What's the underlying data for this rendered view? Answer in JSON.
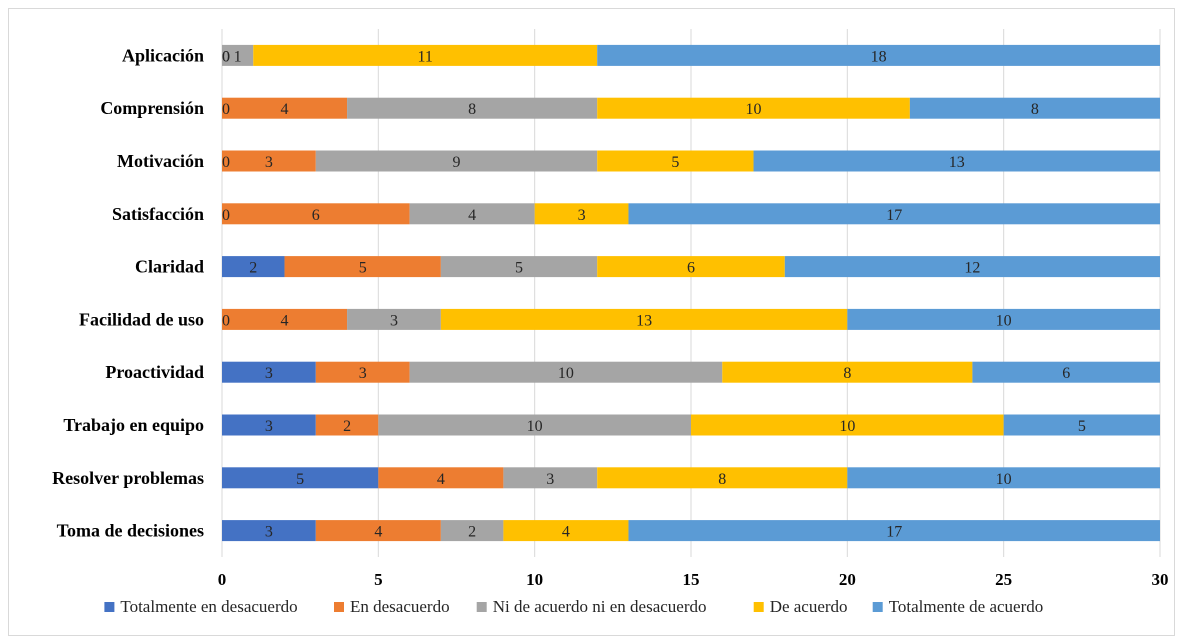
{
  "chart_data": {
    "type": "bar",
    "orientation": "horizontal",
    "stacked": true,
    "title": "",
    "xlabel": "",
    "ylabel": "",
    "xlim": [
      0,
      30
    ],
    "x_ticks": [
      "0",
      "5",
      "10",
      "15",
      "20",
      "25",
      "30"
    ],
    "grid": true,
    "legend_position": "bottom",
    "categories": [
      "Aplicación",
      "Comprensión",
      "Motivación",
      "Satisfacción",
      "Claridad",
      "Facilidad de uso",
      "Proactividad",
      "Trabajo en equipo",
      "Resolver problemas",
      "Toma de decisiones"
    ],
    "series": [
      {
        "name": "Totalmente en desacuerdo",
        "color": "#4472c4",
        "values": [
          0,
          0,
          0,
          0,
          2,
          0,
          3,
          3,
          5,
          3
        ]
      },
      {
        "name": "En desacuerdo",
        "color": "#ed7d31",
        "values": [
          0,
          4,
          3,
          6,
          5,
          4,
          3,
          2,
          4,
          4
        ]
      },
      {
        "name": "Ni de acuerdo ni en desacuerdo",
        "color": "#a5a5a5",
        "values": [
          1,
          8,
          9,
          4,
          5,
          3,
          10,
          10,
          3,
          2
        ]
      },
      {
        "name": "De acuerdo",
        "color": "#ffc000",
        "values": [
          11,
          10,
          5,
          3,
          6,
          13,
          8,
          10,
          8,
          4
        ]
      },
      {
        "name": "Totalmente de acuerdo",
        "color": "#5b9bd5",
        "values": [
          18,
          8,
          13,
          17,
          12,
          10,
          6,
          5,
          10,
          17
        ]
      }
    ]
  }
}
